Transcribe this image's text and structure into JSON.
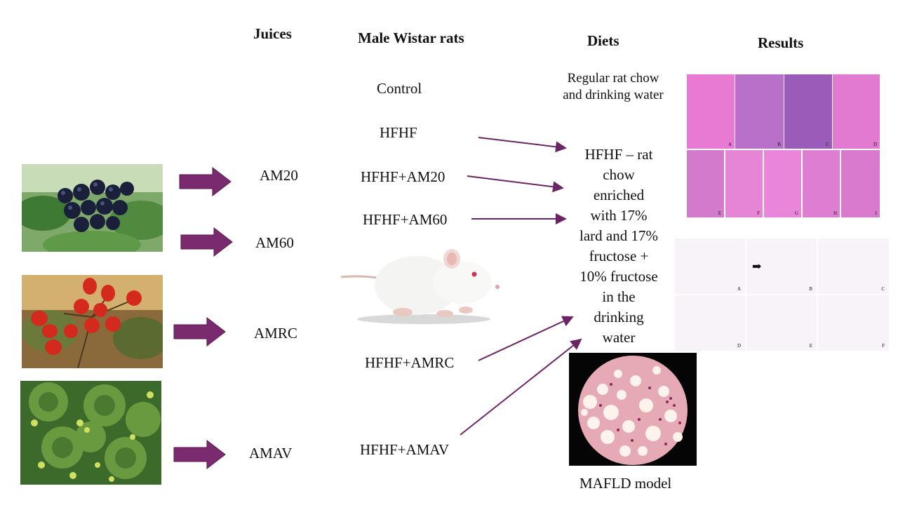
{
  "headers": {
    "juices": "Juices",
    "rats": "Male Wistar rats",
    "diets": "Diets",
    "results": "Results"
  },
  "juices": [
    "AM20",
    "AM60",
    "AMRC",
    "AMAV"
  ],
  "groups": [
    "Control",
    "HFHF",
    "HFHF+AM20",
    "HFHF+AM60",
    "HFHF+AMRC",
    "HFHF+AMAV"
  ],
  "diets": {
    "regular": "Regular rat chow and drinking water",
    "regular_line1": "Regular rat chow",
    "regular_line2": "and drinking water",
    "hfhf_lines": [
      "HFHF – rat",
      "chow",
      "enriched",
      "with 17%",
      "lard and 17%",
      "fructose +",
      "10% fructose",
      "in the",
      "drinking",
      "water"
    ]
  },
  "mafld_label": "MAFLD model",
  "liver_panels": [
    "A",
    "B",
    "C",
    "D",
    "E",
    "F",
    "G",
    "H",
    "I"
  ],
  "fat_panels": [
    "A",
    "B",
    "C",
    "D",
    "E",
    "F"
  ],
  "colors": {
    "arrow_fill": "#7a2a6e",
    "thin_arrow": "#6b2466",
    "he_stain": "#e07ad0"
  }
}
